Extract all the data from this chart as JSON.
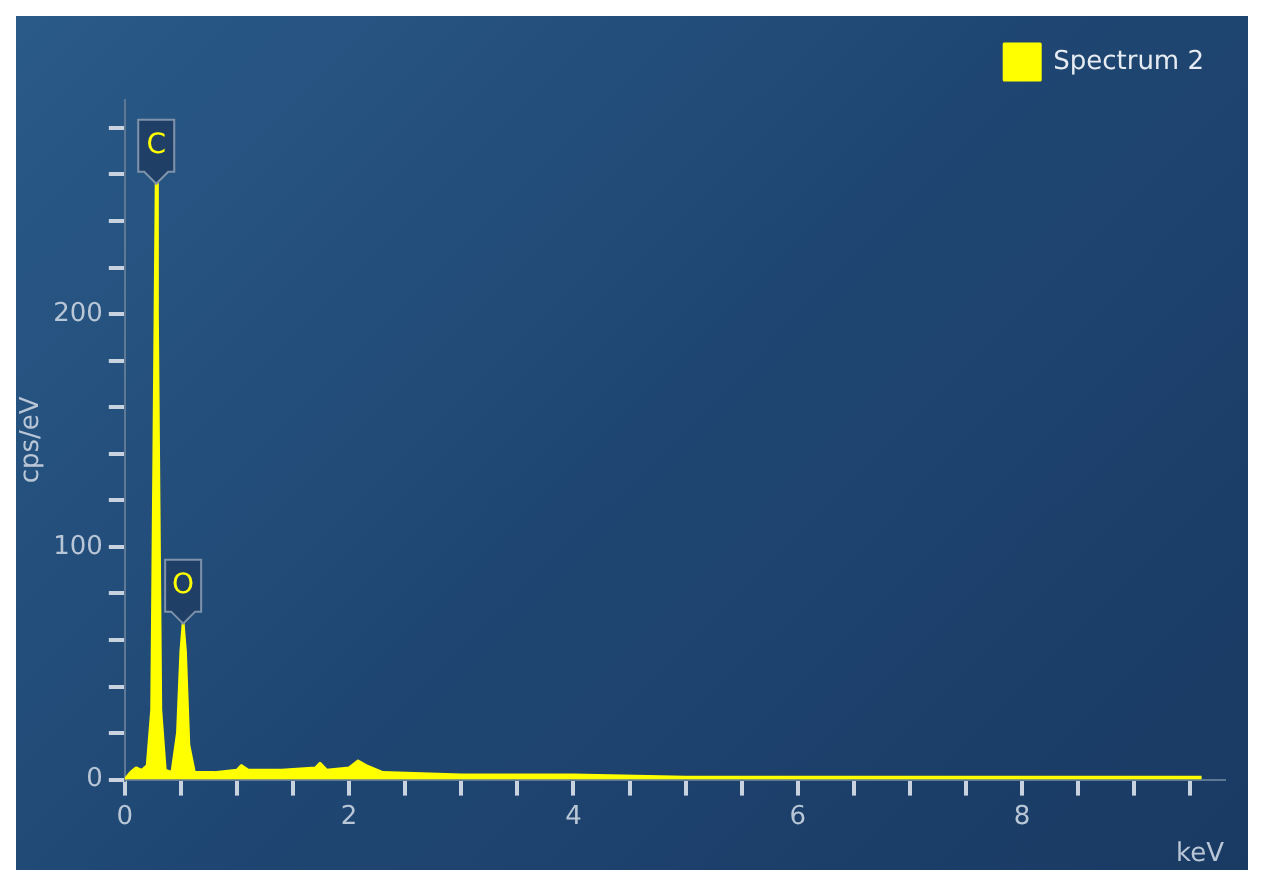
{
  "chart_data": {
    "type": "area",
    "xlabel": "keV",
    "ylabel": "cps/eV",
    "xlim": [
      0,
      9.8
    ],
    "ylim": [
      0,
      292
    ],
    "xticks": [
      0,
      {
        "value": 0.5,
        "label": null
      },
      {
        "value": 1,
        "label": null
      },
      {
        "value": 1.5,
        "label": null
      },
      2,
      {
        "value": 2.5,
        "label": null
      },
      {
        "value": 3,
        "label": null
      },
      {
        "value": 3.5,
        "label": null
      },
      4,
      {
        "value": 4.5,
        "label": null
      },
      {
        "value": 5,
        "label": null
      },
      {
        "value": 5.5,
        "label": null
      },
      6,
      {
        "value": 6.5,
        "label": null
      },
      {
        "value": 7,
        "label": null
      },
      {
        "value": 7.5,
        "label": null
      },
      8,
      {
        "value": 8.5,
        "label": null
      },
      {
        "value": 9,
        "label": null
      },
      {
        "value": 9.5,
        "label": null
      }
    ],
    "yticks": [
      0,
      {
        "value": 20,
        "label": null
      },
      {
        "value": 40,
        "label": null
      },
      {
        "value": 60,
        "label": null
      },
      {
        "value": 80,
        "label": null
      },
      100,
      {
        "value": 120,
        "label": null
      },
      {
        "value": 140,
        "label": null
      },
      {
        "value": 160,
        "label": null
      },
      {
        "value": 180,
        "label": null
      },
      200,
      {
        "value": 220,
        "label": null
      },
      {
        "value": 240,
        "label": null
      },
      {
        "value": 260,
        "label": null
      },
      {
        "value": 280,
        "label": null
      }
    ],
    "x": [
      0.0,
      0.05,
      0.1,
      0.15,
      0.2,
      0.24,
      0.27,
      0.28,
      0.29,
      0.32,
      0.36,
      0.42,
      0.47,
      0.5,
      0.52,
      0.54,
      0.57,
      0.62,
      0.8,
      1.0,
      1.04,
      1.1,
      1.4,
      1.7,
      1.74,
      1.8,
      2.0,
      2.08,
      2.15,
      2.3,
      3,
      4,
      5,
      6,
      7,
      8,
      9,
      9.6
    ],
    "series": [
      {
        "name": "Spectrum 2",
        "color": "#ffff00",
        "values": [
          0,
          3,
          5,
          4,
          6,
          30,
          200,
          256,
          200,
          30,
          4,
          3,
          20,
          55,
          67,
          55,
          15,
          3,
          3,
          4,
          6,
          4,
          4,
          5,
          7,
          4,
          5,
          8,
          6,
          3,
          2,
          2,
          1,
          1,
          1,
          1,
          1,
          1
        ]
      }
    ],
    "annotations": [
      {
        "text": "C",
        "x": 0.28,
        "y": 256
      },
      {
        "text": "O",
        "x": 0.52,
        "y": 67
      }
    ],
    "legend": "top right",
    "grid": false
  }
}
